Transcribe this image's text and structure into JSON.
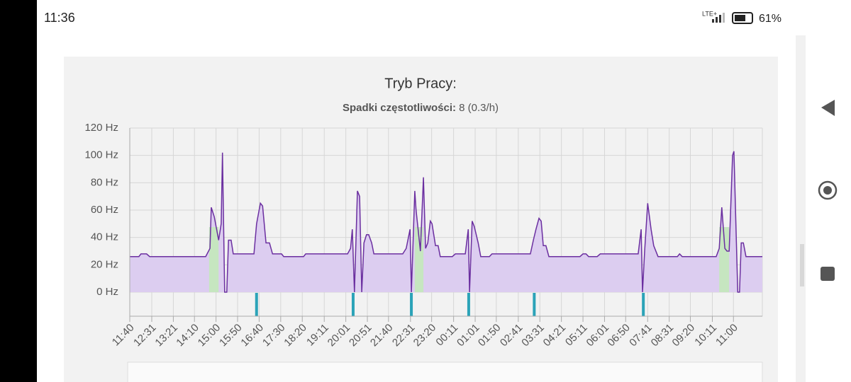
{
  "status_bar": {
    "time": "11:36",
    "network": "LTE+",
    "battery": "61%"
  },
  "chart_data": {
    "type": "area",
    "title": "Tryb Pracy:",
    "subtitle_label": "Spadki częstotliwości:",
    "subtitle_value": "8 (0.3/h)",
    "x": [
      0,
      21,
      26,
      39,
      46,
      176,
      186,
      189,
      196,
      206,
      212,
      215,
      220,
      225,
      229,
      235,
      240,
      288,
      294,
      303,
      308,
      316,
      324,
      331,
      352,
      357,
      403,
      408,
      505,
      512,
      516,
      521,
      528,
      533,
      538,
      543,
      549,
      554,
      561,
      566,
      633,
      641,
      650,
      653,
      661,
      664,
      674,
      681,
      686,
      691,
      697,
      701,
      709,
      715,
      720,
      748,
      755,
      778,
      785,
      788,
      794,
      799,
      808,
      814,
      834,
      840,
      929,
      936,
      942,
      949,
      954,
      959,
      965,
      972,
      1044,
      1051,
      1058,
      1064,
      1084,
      1091,
      1179,
      1186,
      1189,
      1194,
      1201,
      1209,
      1215,
      1225,
      1270,
      1275,
      1281,
      1360,
      1367,
      1373,
      1380,
      1385,
      1390,
      1398,
      1401,
      1410,
      1414,
      1418,
      1423,
      1429,
      1467
    ],
    "series": [
      {
        "color": "#6b2fa0",
        "fill": "#dccdf0",
        "values": [
          26,
          26,
          28,
          28,
          26,
          26,
          32,
          62,
          55,
          38,
          50,
          102,
          0,
          0,
          38,
          38,
          28,
          28,
          50,
          65,
          63,
          36,
          36,
          28,
          28,
          26,
          26,
          28,
          28,
          32,
          46,
          0,
          74,
          70,
          0,
          36,
          42,
          42,
          36,
          28,
          28,
          32,
          46,
          0,
          74,
          60,
          30,
          84,
          32,
          36,
          52,
          50,
          34,
          34,
          26,
          26,
          28,
          28,
          46,
          0,
          52,
          48,
          36,
          26,
          26,
          28,
          28,
          38,
          46,
          54,
          52,
          34,
          34,
          26,
          26,
          28,
          28,
          26,
          26,
          28,
          28,
          46,
          0,
          30,
          65,
          46,
          34,
          26,
          26,
          28,
          26,
          26,
          32,
          62,
          32,
          30,
          30,
          100,
          103,
          0,
          0,
          36,
          36,
          26,
          26
        ]
      }
    ],
    "highlights": [
      [
        184,
        206
      ],
      [
        661,
        681
      ],
      [
        1367,
        1390
      ]
    ],
    "highlight_color": "#c6e6c0",
    "events": [
      294,
      518,
      653,
      786,
      938,
      1191
    ],
    "event_color": "#2ba3b8",
    "xlim": [
      0,
      1467
    ],
    "xticks": [
      {
        "value": 0,
        "label": "11:40"
      },
      {
        "value": 51,
        "label": "12:31"
      },
      {
        "value": 101,
        "label": "13:21"
      },
      {
        "value": 150,
        "label": "14:10"
      },
      {
        "value": 200,
        "label": "15:00"
      },
      {
        "value": 250,
        "label": "15:50"
      },
      {
        "value": 300,
        "label": "16:40"
      },
      {
        "value": 350,
        "label": "17:30"
      },
      {
        "value": 400,
        "label": "18:20"
      },
      {
        "value": 451,
        "label": "19:11"
      },
      {
        "value": 501,
        "label": "20:01"
      },
      {
        "value": 551,
        "label": "20:51"
      },
      {
        "value": 600,
        "label": "21:40"
      },
      {
        "value": 651,
        "label": "22:31"
      },
      {
        "value": 700,
        "label": "23:20"
      },
      {
        "value": 751,
        "label": "00:11"
      },
      {
        "value": 801,
        "label": "01:01"
      },
      {
        "value": 850,
        "label": "01:50"
      },
      {
        "value": 901,
        "label": "02:41"
      },
      {
        "value": 951,
        "label": "03:31"
      },
      {
        "value": 1001,
        "label": "04:21"
      },
      {
        "value": 1051,
        "label": "05:11"
      },
      {
        "value": 1101,
        "label": "06:01"
      },
      {
        "value": 1150,
        "label": "06:50"
      },
      {
        "value": 1201,
        "label": "07:41"
      },
      {
        "value": 1251,
        "label": "08:31"
      },
      {
        "value": 1300,
        "label": "09:20"
      },
      {
        "value": 1351,
        "label": "10:11"
      },
      {
        "value": 1400,
        "label": "11:00"
      }
    ],
    "ylim": [
      0,
      120
    ],
    "yticks": [
      {
        "value": 0,
        "label": "0 Hz"
      },
      {
        "value": 20,
        "label": "20 Hz"
      },
      {
        "value": 40,
        "label": "40 Hz"
      },
      {
        "value": 60,
        "label": "60 Hz"
      },
      {
        "value": 80,
        "label": "80 Hz"
      },
      {
        "value": 100,
        "label": "100 Hz"
      },
      {
        "value": 120,
        "label": "120 Hz"
      }
    ],
    "grid": true
  }
}
